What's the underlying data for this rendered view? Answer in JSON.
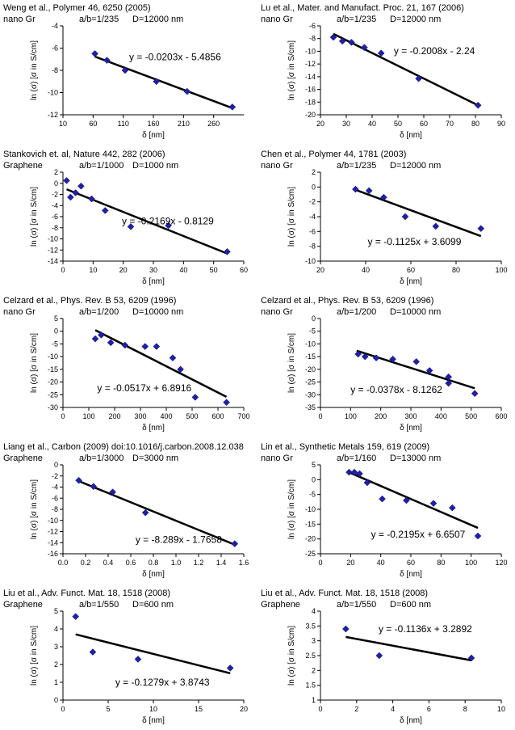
{
  "chart_data": [
    {
      "type": "scatter",
      "source": "Weng et al., Polymer 46, 6250 (2005)",
      "material": "nano Gr",
      "aspect": "a/b=1/235",
      "diameter": "D=12000 nm",
      "xlabel": "δ [nm]",
      "ylabel": "ln (σ) [σ in S/cm]",
      "xlim": [
        10,
        310
      ],
      "ylim": [
        -12,
        -4
      ],
      "xticks": [
        10,
        60,
        110,
        160,
        210,
        260
      ],
      "yticks": [
        -12,
        -10,
        -8,
        -6,
        -4
      ],
      "x": [
        63,
        83,
        113,
        165,
        216,
        291
      ],
      "y": [
        -6.5,
        -7.1,
        -8.0,
        -9.0,
        -9.9,
        -11.3
      ],
      "trendline": {
        "slope": -0.0203,
        "intercept": -5.4856,
        "x_range": [
          63,
          291
        ]
      },
      "equation": "y = -0.0203x - 5.4856"
    },
    {
      "type": "scatter",
      "source": "Lu et al., Mater. and Manufact. Proc. 21, 167 (2006)",
      "material": "nano Gr",
      "aspect": "a/b=1/235",
      "diameter": "D=12000 nm",
      "xlabel": "δ [nm]",
      "ylabel": "ln (σ) [σ in S/cm]",
      "xlim": [
        20,
        90
      ],
      "ylim": [
        -20,
        -6
      ],
      "xticks": [
        20,
        30,
        40,
        50,
        60,
        70,
        80,
        90
      ],
      "yticks": [
        -20,
        -18,
        -16,
        -14,
        -12,
        -10,
        -8,
        -6
      ],
      "x": [
        25,
        28.5,
        32,
        37,
        43.5,
        58,
        81
      ],
      "y": [
        -7.8,
        -8.4,
        -8.6,
        -9.4,
        -10.3,
        -14.3,
        -18.5
      ],
      "trendline": {
        "slope": -0.2008,
        "intercept": -2.24,
        "x_range": [
          25,
          81
        ]
      },
      "equation": "y = -0.2008x - 2.24"
    },
    {
      "type": "scatter",
      "source": "Stankovich et. al, Nature 442, 282 (2006)",
      "material": "Graphene",
      "aspect": "a/b=1/1000",
      "diameter": "D=1000 nm",
      "xlabel": "δ [nm]",
      "ylabel": "ln (σ) [σ in S/cm]",
      "xlim": [
        0,
        60
      ],
      "ylim": [
        -14,
        2
      ],
      "xticks": [
        0,
        10,
        20,
        30,
        40,
        50,
        60
      ],
      "yticks": [
        -14,
        -12,
        -10,
        -8,
        -6,
        -4,
        -2,
        0,
        2
      ],
      "x": [
        1.2,
        2.5,
        4.2,
        6,
        9.5,
        14,
        22.5,
        35,
        54.5
      ],
      "y": [
        0.5,
        -2.5,
        -1.7,
        -0.5,
        -2.8,
        -4.9,
        -7.8,
        -7.6,
        -12.3
      ],
      "trendline": {
        "slope": -0.2169,
        "intercept": -0.8129,
        "x_range": [
          1.2,
          54.5
        ]
      },
      "equation": "y = -0.2169x - 0.8129"
    },
    {
      "type": "scatter",
      "source": "Chen et al., Polymer 44, 1781 (2003)",
      "material": "nano Gr",
      "aspect": "a/b=1/235",
      "diameter": "D=12000 nm",
      "xlabel": "δ [nm]",
      "ylabel": "ln (σ) [σ in S/cm]",
      "xlim": [
        20,
        100
      ],
      "ylim": [
        -10,
        2
      ],
      "xticks": [
        20,
        40,
        60,
        80,
        100
      ],
      "yticks": [
        -10,
        -8,
        -6,
        -4,
        -2,
        0,
        2
      ],
      "x": [
        35.5,
        41.5,
        48,
        57.5,
        71,
        91
      ],
      "y": [
        -0.3,
        -0.5,
        -1.4,
        -4.0,
        -5.3,
        -5.6
      ],
      "trendline": {
        "slope": -0.1125,
        "intercept": 3.6099,
        "x_range": [
          35.5,
          91
        ]
      },
      "equation": "y = -0.1125x + 3.6099"
    },
    {
      "type": "scatter",
      "source": "Celzard et al., Phys. Rev. B 53, 6209 (1996)",
      "material": "nano Gr",
      "aspect": "a/b=1/200",
      "diameter": "D=10000 nm",
      "xlabel": "δ [nm]",
      "ylabel": "ln (σ) [σ in S/cm]",
      "xlim": [
        0,
        700
      ],
      "ylim": [
        -30,
        5
      ],
      "xticks": [
        0,
        100,
        200,
        300,
        400,
        500,
        600,
        700
      ],
      "yticks": [
        -30,
        -25,
        -20,
        -15,
        -10,
        -5,
        0,
        5
      ],
      "x": [
        125,
        148,
        185,
        240,
        318,
        362,
        425,
        455,
        512,
        633
      ],
      "y": [
        -3,
        -1.5,
        -4.5,
        -5.5,
        -6,
        -6,
        -10.5,
        -15,
        -26,
        -28
      ],
      "trendline": {
        "slope": -0.0517,
        "intercept": 6.8916,
        "x_range": [
          125,
          633
        ]
      },
      "equation": "y = -0.0517x + 6.8916"
    },
    {
      "type": "scatter",
      "source": "Celzard et al., Phys. Rev. B 53, 6209 (1996)",
      "material": "nano Gr",
      "aspect": "a/b=1/200",
      "diameter": "D=10000 nm",
      "xlabel": "δ [nm]",
      "ylabel": "ln (σ) [σ in S/cm]",
      "xlim": [
        0,
        600
      ],
      "ylim": [
        -35,
        0
      ],
      "xticks": [
        0,
        100,
        200,
        300,
        400,
        500,
        600
      ],
      "yticks": [
        -35,
        -30,
        -25,
        -20,
        -15,
        -10,
        -5,
        0
      ],
      "x": [
        125,
        148,
        185,
        240,
        318,
        362,
        425,
        425,
        512
      ],
      "y": [
        -14,
        -15,
        -15.5,
        -16,
        -17,
        -20.5,
        -23,
        -25.5,
        -29.5
      ],
      "trendline": {
        "slope": -0.0378,
        "intercept": -8.1262,
        "x_range": [
          120,
          512
        ]
      },
      "equation": "y = -0.0378x - 8.1262"
    },
    {
      "type": "scatter",
      "source": "Liang et al., Carbon (2009) doi:10.1016/j.carbon.2008.12.038",
      "material": "Graphene",
      "aspect": "a/b=1/3000",
      "diameter": "D=3000 nm",
      "xlabel": "δ [nm]",
      "ylabel": "ln (σ) [σ in S/cm]",
      "xlim": [
        0,
        1.6
      ],
      "ylim": [
        -16,
        0
      ],
      "xticks": [
        "0.0",
        "0.2",
        "0.4",
        "0.6",
        "0.8",
        "1.0",
        "1.2",
        "1.4",
        "1.6"
      ],
      "yticks": [
        -16,
        -14,
        -12,
        -10,
        -8,
        -6,
        -4,
        -2,
        0
      ],
      "x": [
        0.14,
        0.27,
        0.44,
        0.73,
        1.52
      ],
      "y": [
        -2.8,
        -3.9,
        -4.9,
        -8.6,
        -14.2
      ],
      "trendline": {
        "slope": -8.289,
        "intercept": -1.7658,
        "x_range": [
          0.14,
          1.52
        ]
      },
      "equation": "y = -8.289x - 1.7658"
    },
    {
      "type": "scatter",
      "source": "Lin et al., Synthetic Metals 159, 619 (2009)",
      "material": "nano Gr",
      "aspect": "a/b=1/160",
      "diameter": "D=13000 nm",
      "xlabel": "δ [nm]",
      "ylabel": "ln (σ) [σ in S/cm]",
      "xlim": [
        0,
        120
      ],
      "ylim": [
        -25,
        5
      ],
      "xticks": [
        0,
        20,
        40,
        60,
        80,
        100,
        120
      ],
      "yticks": [
        -25,
        -20,
        -15,
        -10,
        -5,
        0,
        5
      ],
      "x": [
        19,
        22.5,
        26,
        31,
        41,
        57,
        75,
        87.5,
        104.5
      ],
      "y": [
        2.5,
        2.5,
        2,
        -1,
        -6.5,
        -7,
        -8,
        -9.5,
        -19
      ],
      "trendline": {
        "slope": -0.2195,
        "intercept": 6.6507,
        "x_range": [
          18,
          104.5
        ]
      },
      "equation": "y = -0.2195x + 6.6507"
    },
    {
      "type": "scatter",
      "source": "Liu et al., Adv. Funct. Mat. 18, 1518 (2008)",
      "material": "Graphene",
      "aspect": "a/b=1/550",
      "diameter": "D=600 nm",
      "xlabel": "δ [nm]",
      "ylabel": "ln (σ) [σ in S/cm]",
      "xlim": [
        0,
        20
      ],
      "ylim": [
        0,
        5
      ],
      "xticks": [
        0,
        5,
        10,
        15,
        20
      ],
      "yticks": [
        0,
        1,
        2,
        3,
        4,
        5
      ],
      "x": [
        1.4,
        3.3,
        8.3,
        18.5
      ],
      "y": [
        4.7,
        2.7,
        2.3,
        1.8
      ],
      "trendline": {
        "slope": -0.1279,
        "intercept": 3.8743,
        "x_range": [
          1.4,
          18.5
        ]
      },
      "equation": "y = -0.1279x + 3.8743"
    },
    {
      "type": "scatter",
      "source": "Liu et al., Adv. Funct. Mat. 18, 1518 (2008)",
      "material": "Graphene",
      "aspect": "a/b=1/550",
      "diameter": "D=600 nm",
      "xlabel": "δ [nm]",
      "ylabel": "ln (σ) [σ in S/cm]",
      "xlim": [
        0,
        10
      ],
      "ylim": [
        1,
        4
      ],
      "xticks": [
        0,
        2,
        4,
        6,
        8,
        10
      ],
      "yticks": [
        1,
        1.5,
        2,
        2.5,
        3,
        3.5,
        4
      ],
      "x": [
        1.4,
        3.25,
        8.35
      ],
      "y": [
        3.4,
        2.5,
        2.42
      ],
      "trendline": {
        "slope": -0.1136,
        "intercept": 3.2892,
        "x_range": [
          1.4,
          8.35
        ]
      },
      "equation": "y = -0.1136x + 3.2892"
    }
  ]
}
